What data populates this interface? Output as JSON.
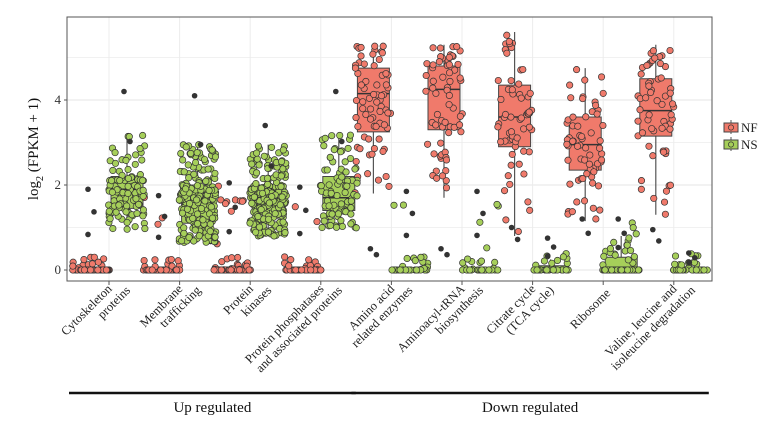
{
  "chart_data": {
    "type": "box",
    "title": "",
    "ylabel": "log2 (FPKM + 1)",
    "ylabel_parts": {
      "pre": "log",
      "sub": "2",
      "post": " (FPKM + 1)"
    },
    "xlabel": "",
    "ylim": [
      -0.2,
      5.85
    ],
    "yticks": [
      0,
      2,
      4
    ],
    "grid": true,
    "legend": {
      "position": "right",
      "entries": [
        {
          "name": "NF",
          "color": "#f07a6b"
        },
        {
          "name": "NS",
          "color": "#a6cf5a"
        }
      ]
    },
    "categories": [
      [
        "Cytoskeleton",
        "proteins"
      ],
      [
        "Membrane",
        "trafficking"
      ],
      [
        "Protein",
        "kinases"
      ],
      [
        "Protein phosphatases",
        "and associated proteins"
      ],
      [
        "Amino acid",
        "related enzymes"
      ],
      [
        "Aminoacyl-tRNA",
        "biosynthesis"
      ],
      [
        "Citrate cycle",
        "(TCA cycle)"
      ],
      [
        "Ribosome"
      ],
      [
        "Valine, leucine and",
        "isoleucine degradation"
      ]
    ],
    "groups": [
      {
        "label": "Up regulated",
        "from": 0,
        "to": 3
      },
      {
        "label": "Down regulated",
        "from": 4,
        "to": 8
      }
    ],
    "series": [
      {
        "name": "NF",
        "color": "#f07a6b",
        "boxes": [
          {
            "min": 0,
            "q1": 0,
            "median": 0,
            "q3": 0,
            "max": 0,
            "n_points": 60,
            "outlier_max": 1.9
          },
          {
            "min": 0,
            "q1": 0,
            "median": 0,
            "q3": 0,
            "max": 0,
            "n_points": 60,
            "outlier_max": 1.75
          },
          {
            "min": 0,
            "q1": 0,
            "median": 0,
            "q3": 0,
            "max": 0,
            "n_points": 90,
            "outlier_max": 2.05
          },
          {
            "min": 0,
            "q1": 0,
            "median": 0,
            "q3": 0,
            "max": 0,
            "n_points": 55,
            "outlier_max": 1.95
          },
          {
            "min": 1.8,
            "q1": 3.25,
            "median": 4.15,
            "q3": 4.75,
            "max": 5.3,
            "n_points": 70,
            "outlier_max": 0.5
          },
          {
            "min": 1.7,
            "q1": 3.3,
            "median": 4.25,
            "q3": 4.8,
            "max": 5.3,
            "n_points": 65,
            "outlier_max": 0.5
          },
          {
            "min": 0.8,
            "q1": 2.9,
            "median": 3.6,
            "q3": 4.35,
            "max": 5.6,
            "n_points": 60,
            "outlier_max": 1.0
          },
          {
            "min": 1.15,
            "q1": 2.35,
            "median": 2.95,
            "q3": 3.6,
            "max": 4.75,
            "n_points": 65,
            "outlier_max": 1.2
          },
          {
            "min": 1.3,
            "q1": 3.15,
            "median": 3.75,
            "q3": 4.5,
            "max": 5.3,
            "n_points": 60,
            "outlier_max": 0.95
          }
        ]
      },
      {
        "name": "NS",
        "color": "#a6cf5a",
        "boxes": [
          {
            "min": 0.95,
            "q1": 1.45,
            "median": 1.9,
            "q3": 2.2,
            "max": 3.2,
            "n_points": 110,
            "outlier_max": 4.2
          },
          {
            "min": 0.65,
            "q1": 1.1,
            "median": 1.55,
            "q3": 2.0,
            "max": 2.95,
            "n_points": 210,
            "outlier_max": 4.1
          },
          {
            "min": 0.8,
            "q1": 1.3,
            "median": 1.75,
            "q3": 2.0,
            "max": 2.95,
            "n_points": 230,
            "outlier_max": 3.4
          },
          {
            "min": 0.95,
            "q1": 1.4,
            "median": 1.7,
            "q3": 2.2,
            "max": 3.2,
            "n_points": 90,
            "outlier_max": 4.2
          },
          {
            "min": 0,
            "q1": 0,
            "median": 0,
            "q3": 0,
            "max": 0,
            "n_points": 45,
            "outlier_max": 1.85
          },
          {
            "min": 0,
            "q1": 0,
            "median": 0,
            "q3": 0,
            "max": 0,
            "n_points": 40,
            "outlier_max": 1.85
          },
          {
            "min": 0,
            "q1": 0,
            "median": 0,
            "q3": 0.1,
            "max": 0.25,
            "n_points": 40,
            "outlier_max": 0.75
          },
          {
            "min": 0,
            "q1": 0,
            "median": 0.05,
            "q3": 0.3,
            "max": 0.8,
            "n_points": 80,
            "outlier_max": 1.2
          },
          {
            "min": 0,
            "q1": 0,
            "median": 0,
            "q3": 0.05,
            "max": 0.25,
            "n_points": 40,
            "outlier_max": 0.4
          }
        ]
      }
    ]
  }
}
